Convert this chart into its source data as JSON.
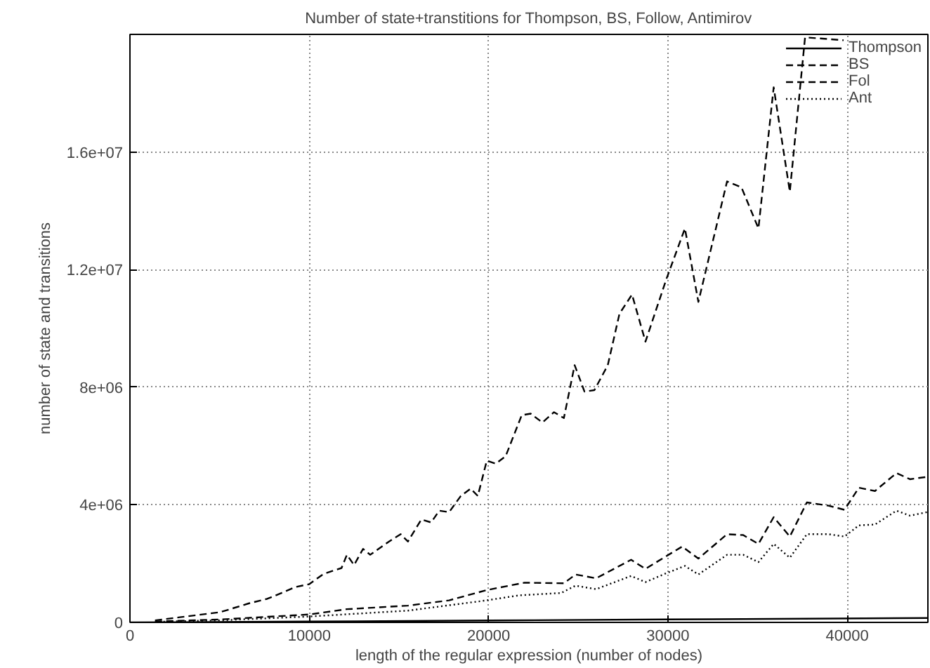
{
  "chart_data": {
    "type": "line",
    "title": "Number of state+transtitions for Thompson, BS, Follow, Antimirov",
    "xlabel": "length of the regular expression (number of nodes)",
    "ylabel": "number of state and transitions",
    "xlim": [
      0,
      44500
    ],
    "ylim": [
      0,
      20000000
    ],
    "xticks": [
      0,
      10000,
      20000,
      30000,
      40000
    ],
    "yticks": [
      0,
      {
        "value": 4000000,
        "label": "4e+06"
      },
      {
        "value": 8000000,
        "label": "8e+06"
      },
      {
        "value": 12000000,
        "label": "1.2e+07"
      },
      {
        "value": 16000000,
        "label": "1.6e+07"
      }
    ],
    "grid": true,
    "legend": "top right",
    "marker": "none",
    "series": [
      {
        "name": "Thompson",
        "color": "#000000",
        "line_style": "solid",
        "x": [
          0,
          10000,
          20000,
          30000,
          44500
        ],
        "values": [
          0,
          30000,
          65000,
          100000,
          150000
        ]
      },
      {
        "name": "BS",
        "color": "#000000",
        "line_style": "dashed",
        "x": [
          1400,
          3750,
          5050,
          6650,
          7650,
          8450,
          9200,
          10000,
          10800,
          11800,
          12100,
          12500,
          13000,
          13400,
          14450,
          15100,
          15500,
          16250,
          16800,
          17250,
          17800,
          18450,
          19000,
          19400,
          19900,
          20400,
          20950,
          21850,
          22350,
          23000,
          23650,
          24200,
          24800,
          25350,
          25900,
          26650,
          27300,
          28000,
          28750,
          29900,
          30950,
          31700,
          33300,
          34100,
          35050,
          35900,
          36800,
          37650,
          39800
        ],
        "values": [
          70000,
          250000,
          350000,
          650000,
          800000,
          1000000,
          1200000,
          1300000,
          1650000,
          1850000,
          2300000,
          1950000,
          2500000,
          2300000,
          2750000,
          3000000,
          2750000,
          3500000,
          3400000,
          3800000,
          3750000,
          4300000,
          4550000,
          4300000,
          5500000,
          5400000,
          5650000,
          7050000,
          7100000,
          6800000,
          7150000,
          6950000,
          8750000,
          7850000,
          7900000,
          8750000,
          10500000,
          11150000,
          9550000,
          11650000,
          13400000,
          10900000,
          15000000,
          14800000,
          13400000,
          18200000,
          14650000,
          19900000,
          19800000
        ]
      },
      {
        "name": "Fol",
        "color": "#000000",
        "line_style": "dashed",
        "x": [
          1400,
          5050,
          10000,
          12100,
          15500,
          17800,
          19900,
          22000,
          24200,
          24850,
          26000,
          27950,
          28750,
          29900,
          30800,
          31700,
          33300,
          34200,
          35050,
          35900,
          36800,
          37750,
          38950,
          39850,
          40650,
          41550,
          42750,
          43500,
          44450
        ],
        "values": [
          30000,
          100000,
          270000,
          450000,
          570000,
          750000,
          1100000,
          1350000,
          1330000,
          1630000,
          1500000,
          2130000,
          1820000,
          2250000,
          2580000,
          2170000,
          3000000,
          2970000,
          2670000,
          3580000,
          2920000,
          4080000,
          3970000,
          3830000,
          4580000,
          4470000,
          5080000,
          4870000,
          4950000
        ]
      },
      {
        "name": "Ant",
        "color": "#000000",
        "line_style": "dotted",
        "x": [
          1400,
          5050,
          10000,
          15500,
          19900,
          21700,
          24050,
          24850,
          26000,
          27950,
          28750,
          29900,
          30950,
          31700,
          33300,
          34200,
          35050,
          35900,
          36800,
          37750,
          38950,
          39850,
          40650,
          41550,
          42750,
          43500,
          44450
        ],
        "values": [
          20000,
          70000,
          200000,
          400000,
          750000,
          920000,
          1000000,
          1250000,
          1130000,
          1580000,
          1370000,
          1670000,
          1920000,
          1630000,
          2300000,
          2300000,
          2050000,
          2670000,
          2200000,
          3000000,
          3000000,
          2920000,
          3300000,
          3330000,
          3800000,
          3630000,
          3750000
        ]
      }
    ]
  }
}
